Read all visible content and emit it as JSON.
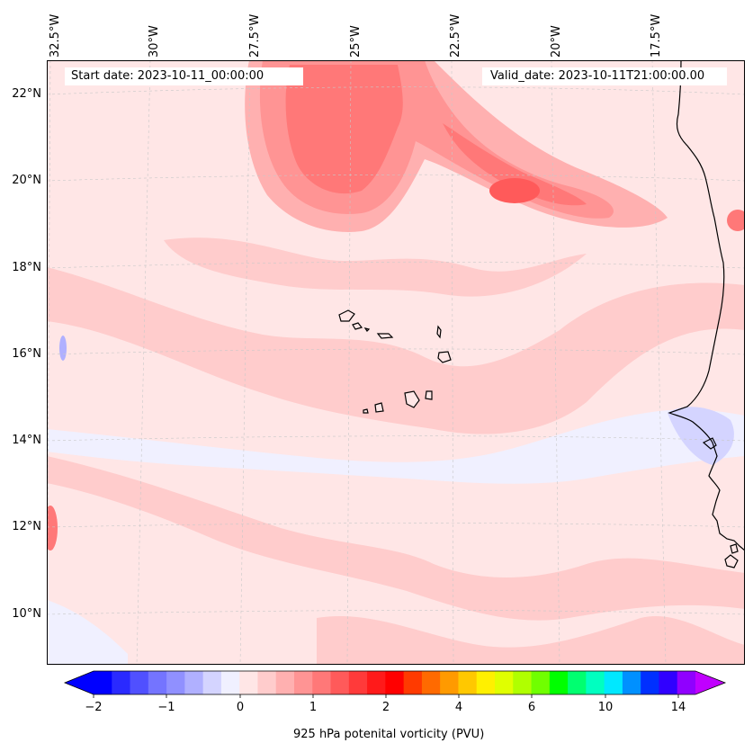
{
  "header": {
    "start_date": "Start date: 2023-10-11_00:00:00",
    "valid_date": "Valid_date: 2023-10-11T21:00:00.00"
  },
  "longitude_labels": [
    "32.5°W",
    "30°W",
    "27.5°W",
    "25°W",
    "22.5°W",
    "20°W",
    "17.5°W"
  ],
  "latitude_labels": [
    "22°N",
    "20°N",
    "18°N",
    "16°N",
    "14°N",
    "12°N",
    "10°N"
  ],
  "colorbar": {
    "label": "925 hPa potenital vorticity (PVU)",
    "tick_labels": [
      "−2",
      "−1",
      "0",
      "1",
      "2",
      "4",
      "6",
      "10",
      "14"
    ],
    "colors": [
      "#0000ff",
      "#2a2aff",
      "#5050ff",
      "#7474ff",
      "#9090ff",
      "#b0b0ff",
      "#d4d4ff",
      "#f0f0ff",
      "#ffe6e6",
      "#ffcccc",
      "#ffb0b0",
      "#ff9494",
      "#ff7878",
      "#ff5a5a",
      "#ff3a3a",
      "#ff1a1a",
      "#ff0000",
      "#ff3a00",
      "#ff6a00",
      "#ff9a00",
      "#ffc800",
      "#fff000",
      "#e0ff00",
      "#b0ff00",
      "#70ff00",
      "#00ff00",
      "#00ff70",
      "#00ffc0",
      "#00e8ff",
      "#0090ff",
      "#0030ff",
      "#3000ff",
      "#9000ff"
    ],
    "under_color": "#0000ff",
    "over_color": "#c000ff"
  }
}
